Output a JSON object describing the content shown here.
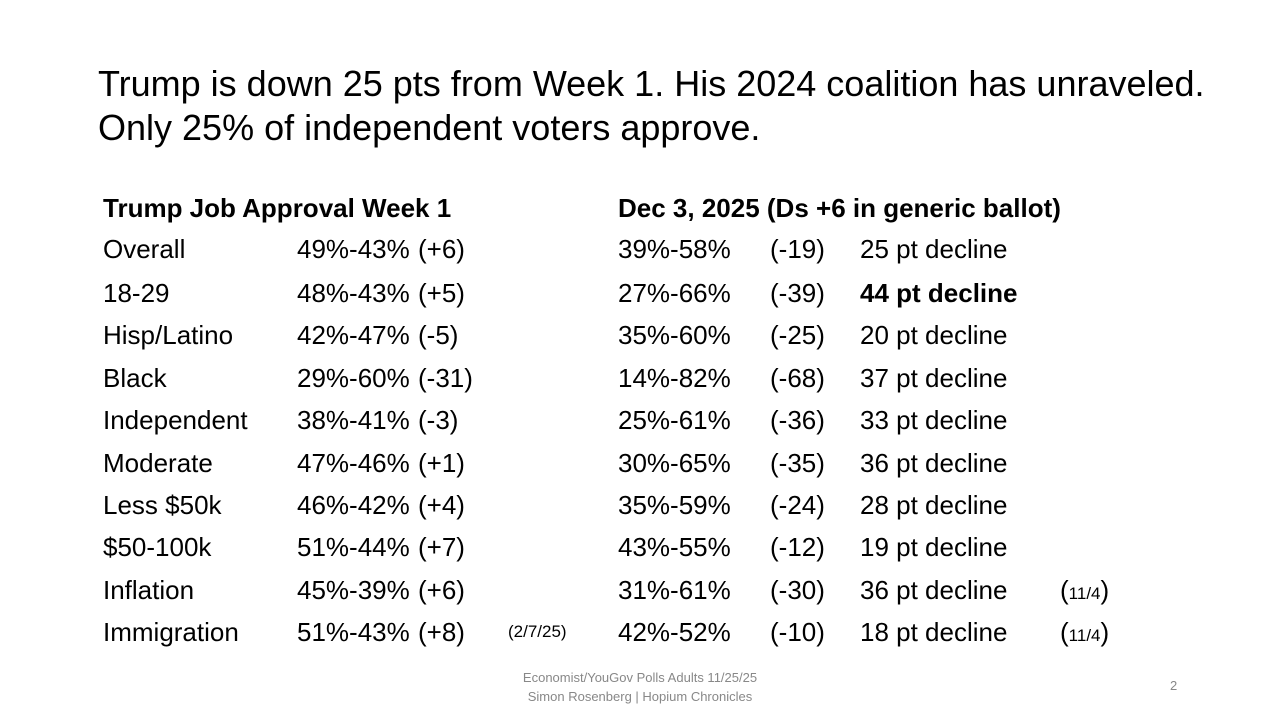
{
  "title": "Trump is down 25 pts from Week 1. His 2024 coalition has unraveled.  Only 25% of independent voters approve.",
  "header": {
    "left": "Trump Job Approval Week 1",
    "right": "Dec 3, 2025 (Ds +6 in generic ballot)"
  },
  "rows": [
    {
      "label": "Overall",
      "w1": "49%-43%",
      "w1d": "(+6)",
      "note": "",
      "dec": "39%-58%",
      "decd": "(-19)",
      "decl": "25 pt decline",
      "decl_note": ""
    },
    {
      "label": "18-29",
      "w1": "48%-43%",
      "w1d": "(+5)",
      "note": "",
      "dec": "27%-66%",
      "decd": "(-39)",
      "decl": "44 pt decline",
      "decl_note": ""
    },
    {
      "label": "Hisp/Latino",
      "w1": "42%-47%",
      "w1d": "(-5)",
      "note": "",
      "dec": "35%-60%",
      "decd": "(-25)",
      "decl": "20 pt decline",
      "decl_note": ""
    },
    {
      "label": "Black",
      "w1": "29%-60%",
      "w1d": "(-31)",
      "note": "",
      "dec": "14%-82%",
      "decd": "(-68)",
      "decl": "37 pt decline",
      "decl_note": ""
    },
    {
      "label": "Independent",
      "w1": "38%-41%",
      "w1d": "(-3)",
      "note": "",
      "dec": "25%-61%",
      "decd": "(-36)",
      "decl": "33 pt decline",
      "decl_note": ""
    },
    {
      "label": "Moderate",
      "w1": "47%-46%",
      "w1d": "(+1)",
      "note": "",
      "dec": "30%-65%",
      "decd": "(-35)",
      "decl": "36 pt decline",
      "decl_note": ""
    },
    {
      "label": "Less $50k",
      "w1": "46%-42%",
      "w1d": "(+4)",
      "note": "",
      "dec": "35%-59%",
      "decd": "(-24)",
      "decl": "28 pt decline",
      "decl_note": ""
    },
    {
      "label": "$50-100k",
      "w1": "51%-44%",
      "w1d": "(+7)",
      "note": "",
      "dec": "43%-55%",
      "decd": "(-12)",
      "decl": "19 pt decline",
      "decl_note": ""
    },
    {
      "label": "Inflation",
      "w1": "45%-39%",
      "w1d": "(+6)",
      "note": "",
      "dec": "31%-61%",
      "decd": "(-30)",
      "decl": "36 pt decline",
      "decl_note": "11/4"
    },
    {
      "label": "Immigration",
      "w1": "51%-43%",
      "w1d": "(+8)",
      "note": "(2/7/25)",
      "dec": "42%-52%",
      "decd": "(-10)",
      "decl": "18 pt decline",
      "decl_note": "11/4"
    }
  ],
  "footer": {
    "line1": "Economist/YouGov Polls Adults 11/25/25",
    "line2": "Simon Rosenberg | Hopium Chronicles"
  },
  "page_number": "2"
}
